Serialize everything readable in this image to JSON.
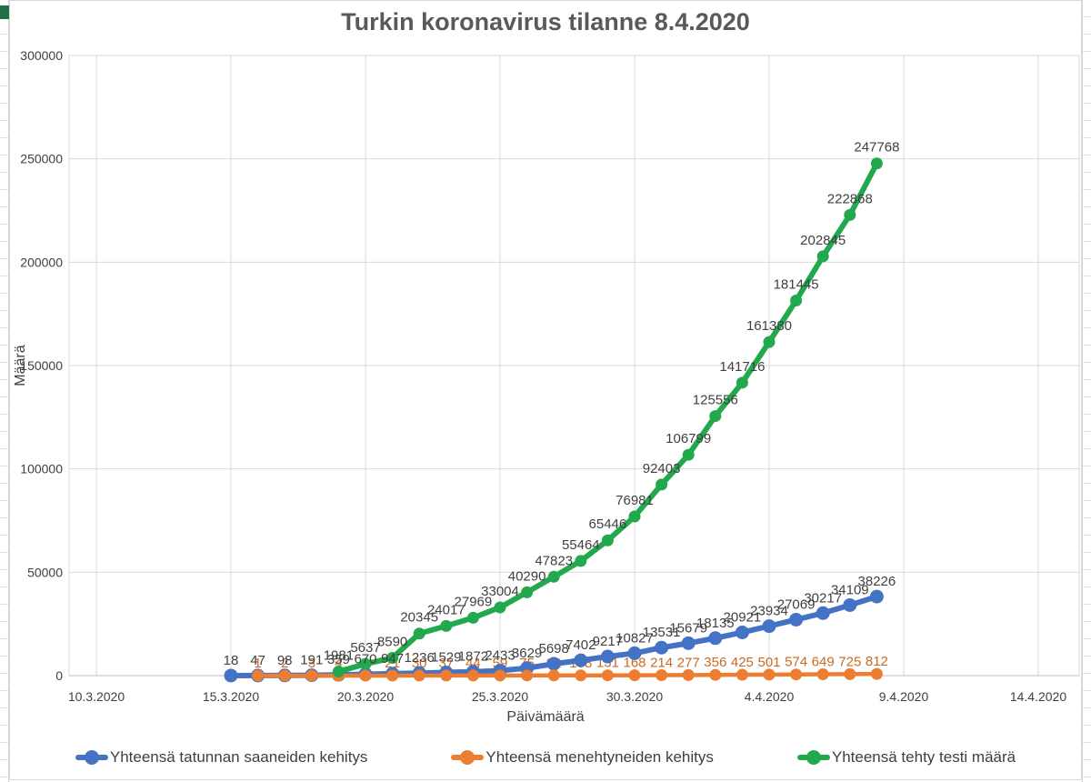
{
  "chart_data": {
    "type": "line",
    "title": "Turkin koronavirus tilanne 8.4.2020",
    "xlabel": "Päivämäärä",
    "ylabel": "Määrä",
    "ylim": [
      0,
      300000
    ],
    "grid": true,
    "legend_position": "bottom",
    "x_tick_labels": [
      "10.3.2020",
      "15.3.2020",
      "20.3.2020",
      "25.3.2020",
      "30.3.2020",
      "4.4.2020",
      "9.4.2020",
      "14.4.2020"
    ],
    "x_tick_day_positions": [
      0,
      5,
      10,
      15,
      20,
      25,
      30,
      35
    ],
    "y_ticks": [
      0,
      50000,
      100000,
      150000,
      200000,
      250000,
      300000
    ],
    "colors": {
      "background": "#FFFFFF",
      "gridline": "#D9D9D9",
      "axis_line": "#BFBFBF",
      "tick_text": "#404040",
      "title_text": "#595959",
      "legend_text": "#3F3F3F"
    },
    "series": [
      {
        "name": "Yhteensä tatunnan saaneiden kehitys",
        "color": "#4472C4",
        "label_color": "#404040",
        "start_day": 5,
        "values": [
          18,
          47,
          98,
          191,
          359,
          670,
          947,
          1236,
          1529,
          1872,
          2433,
          3629,
          5698,
          7402,
          9217,
          10827,
          13531,
          15679,
          18135,
          20921,
          23934,
          27069,
          30217,
          34109,
          38226
        ]
      },
      {
        "name": "Yhteensä menehtyneiden kehitys",
        "color": "#ED7D31",
        "label_color": "#C96A23",
        "start_day": 6,
        "values": [
          1,
          2,
          3,
          4,
          9,
          21,
          30,
          37,
          44,
          59,
          75,
          92,
          108,
          131,
          168,
          214,
          277,
          356,
          425,
          501,
          574,
          649,
          725,
          812
        ]
      },
      {
        "name": "Yhteensä tehty testi määrä",
        "color": "#22A84D",
        "label_color": "#404040",
        "start_day": 9,
        "values": [
          1981,
          5637,
          8590,
          20345,
          24017,
          27969,
          33004,
          40290,
          47823,
          55464,
          65446,
          76981,
          92403,
          106799,
          125556,
          141716,
          161380,
          181445,
          202845,
          222868,
          247768
        ]
      }
    ]
  }
}
